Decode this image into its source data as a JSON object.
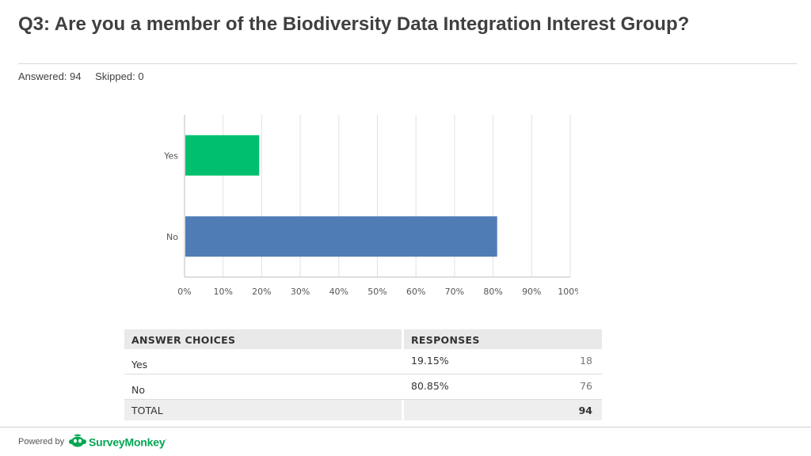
{
  "header": {
    "title": "Q3: Are you a member of the Biodiversity Data Integration Interest Group?",
    "answered": "Answered: 94",
    "skipped": "Skipped: 0"
  },
  "chart_data": {
    "type": "bar",
    "orientation": "horizontal",
    "categories": [
      "Yes",
      "No"
    ],
    "values": [
      19.15,
      80.85
    ],
    "colors": [
      "#00bf6f",
      "#507cb6"
    ],
    "xlim": [
      0,
      100
    ],
    "xticks": [
      "0%",
      "10%",
      "20%",
      "30%",
      "40%",
      "50%",
      "60%",
      "70%",
      "80%",
      "90%",
      "100%"
    ],
    "grid": true
  },
  "table": {
    "headers": [
      "ANSWER CHOICES",
      "RESPONSES"
    ],
    "rows": [
      {
        "choice": "Yes",
        "percent": "19.15%",
        "count": "18"
      },
      {
        "choice": "No",
        "percent": "80.85%",
        "count": "76"
      }
    ],
    "total_label": "TOTAL",
    "total_count": "94"
  },
  "footer": {
    "powered_by": "Powered by",
    "brand": "SurveyMonkey",
    "brand_mark": "·",
    "brand_color": "#00a651"
  }
}
